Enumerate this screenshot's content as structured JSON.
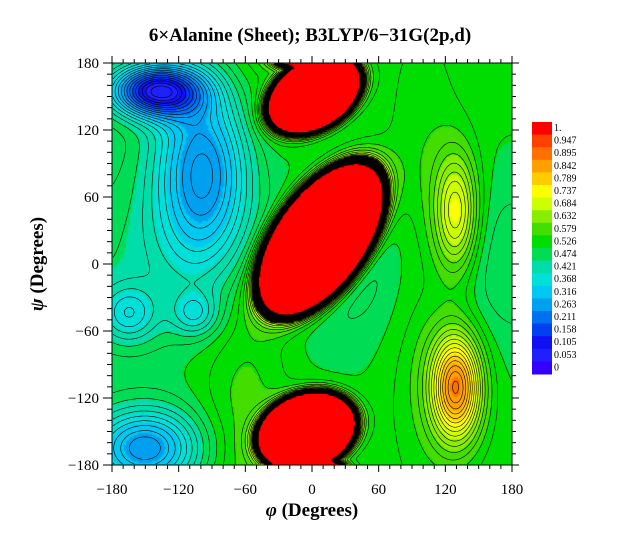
{
  "chart_data": {
    "type": "heatmap",
    "title": "6×Alanine (Sheet); B3LYP/6−31G(2p,d)",
    "xlabel_symbol": "φ",
    "xlabel_text": " (Degrees)",
    "ylabel_symbol": "ψ",
    "ylabel_text": " (Degrees)",
    "xlim": [
      -180,
      180
    ],
    "ylim": [
      -180,
      180
    ],
    "x_ticks": [
      -180,
      -120,
      -60,
      0,
      60,
      120,
      180
    ],
    "y_ticks": [
      -180,
      -120,
      -60,
      0,
      60,
      120,
      180
    ],
    "x_tick_labels": [
      "−180",
      "−120",
      "−60",
      "0",
      "60",
      "120",
      "180"
    ],
    "y_tick_labels": [
      "−180",
      "−120",
      "−60",
      "0",
      "60",
      "120",
      "180"
    ],
    "colorbar": {
      "levels": [
        "1.",
        "0.947",
        "0.895",
        "0.842",
        "0.789",
        "0.737",
        "0.684",
        "0.632",
        "0.579",
        "0.526",
        "0.474",
        "0.421",
        "0.368",
        "0.316",
        "0.263",
        "0.211",
        "0.158",
        "0.105",
        "0.053",
        "0"
      ],
      "colors": [
        "#ff0000",
        "#ff4000",
        "#ff7000",
        "#ffa000",
        "#ffcc00",
        "#ffff00",
        "#ccff00",
        "#88ee00",
        "#44dd00",
        "#00dd00",
        "#00dd55",
        "#00ddaa",
        "#00e0d8",
        "#00c8f0",
        "#00a0f0",
        "#0070f0",
        "#0040f0",
        "#1010f0",
        "#2020ff",
        "#3300ff"
      ]
    },
    "surface_features": [
      {
        "kind": "minimum",
        "phi": -140,
        "psi": 155,
        "value": 0.05
      },
      {
        "kind": "minimum",
        "phi": -85,
        "psi": 55,
        "value": 0.1
      },
      {
        "kind": "minimum",
        "phi": -165,
        "psi": -45,
        "value": 0.17
      },
      {
        "kind": "minimum",
        "phi": -105,
        "psi": -45,
        "value": 0.18
      },
      {
        "kind": "minimum",
        "phi": -150,
        "psi": -170,
        "value": 0.05
      },
      {
        "kind": "maximum",
        "phi": 130,
        "psi": 45,
        "value": 0.77
      },
      {
        "kind": "maximum",
        "phi": 130,
        "psi": -110,
        "value": 0.87
      },
      {
        "kind": "high-energy region",
        "phi": 0,
        "psi": 155,
        "value": 1.0
      },
      {
        "kind": "high-energy region",
        "phi": 10,
        "psi": 20,
        "value": 1.0
      },
      {
        "kind": "high-energy region",
        "phi": -5,
        "psi": -150,
        "value": 1.0
      }
    ]
  }
}
